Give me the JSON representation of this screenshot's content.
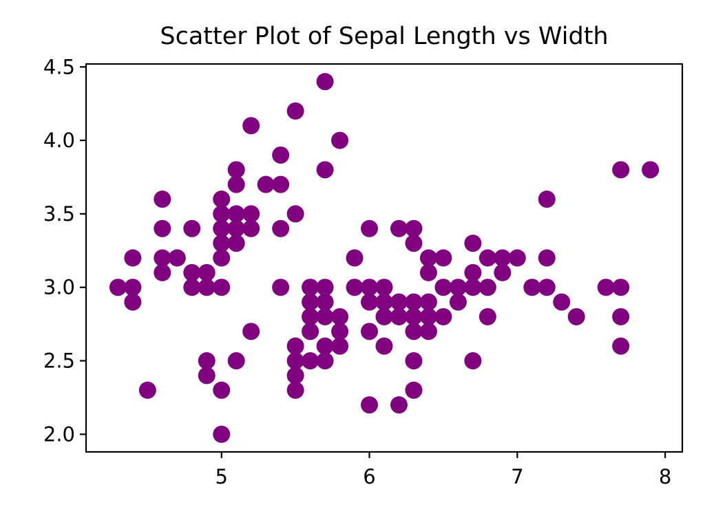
{
  "chart_data": {
    "type": "scatter",
    "title": "Scatter Plot of Sepal Length vs Width",
    "xlabel": "",
    "ylabel": "",
    "xlim": [
      4.084,
      8.116
    ],
    "ylim": [
      1.88,
      4.52
    ],
    "xticks": [
      5,
      6,
      7,
      8
    ],
    "xtick_labels": [
      "5",
      "6",
      "7",
      "8"
    ],
    "yticks": [
      2.0,
      2.5,
      3.0,
      3.5,
      4.0,
      4.5
    ],
    "ytick_labels": [
      "2.0",
      "2.5",
      "3.0",
      "3.5",
      "4.0",
      "4.5"
    ],
    "grid": false,
    "legend": "none",
    "marker_color": "#800080",
    "points": [
      [
        4.3,
        3.0
      ],
      [
        4.4,
        3.2
      ],
      [
        4.4,
        3.0
      ],
      [
        4.4,
        2.9
      ],
      [
        4.5,
        2.3
      ],
      [
        4.6,
        3.6
      ],
      [
        4.6,
        3.4
      ],
      [
        4.6,
        3.2
      ],
      [
        4.6,
        3.1
      ],
      [
        4.7,
        3.2
      ],
      [
        4.8,
        3.4
      ],
      [
        4.8,
        3.1
      ],
      [
        4.8,
        3.0
      ],
      [
        4.9,
        3.1
      ],
      [
        4.9,
        3.0
      ],
      [
        4.9,
        2.5
      ],
      [
        4.9,
        2.4
      ],
      [
        5.0,
        3.6
      ],
      [
        5.0,
        3.5
      ],
      [
        5.0,
        3.4
      ],
      [
        5.0,
        3.3
      ],
      [
        5.0,
        3.2
      ],
      [
        5.0,
        3.0
      ],
      [
        5.0,
        2.3
      ],
      [
        5.0,
        2.0
      ],
      [
        5.1,
        3.8
      ],
      [
        5.1,
        3.7
      ],
      [
        5.1,
        3.5
      ],
      [
        5.1,
        3.4
      ],
      [
        5.1,
        3.3
      ],
      [
        5.1,
        2.5
      ],
      [
        5.2,
        4.1
      ],
      [
        5.2,
        3.5
      ],
      [
        5.2,
        3.4
      ],
      [
        5.2,
        2.7
      ],
      [
        5.3,
        3.7
      ],
      [
        5.4,
        3.9
      ],
      [
        5.4,
        3.7
      ],
      [
        5.4,
        3.4
      ],
      [
        5.4,
        3.0
      ],
      [
        5.5,
        4.2
      ],
      [
        5.5,
        3.5
      ],
      [
        5.5,
        2.6
      ],
      [
        5.5,
        2.5
      ],
      [
        5.5,
        2.4
      ],
      [
        5.5,
        2.3
      ],
      [
        5.6,
        3.0
      ],
      [
        5.6,
        2.9
      ],
      [
        5.6,
        2.8
      ],
      [
        5.6,
        2.7
      ],
      [
        5.6,
        2.5
      ],
      [
        5.7,
        4.4
      ],
      [
        5.7,
        3.8
      ],
      [
        5.7,
        3.0
      ],
      [
        5.7,
        2.9
      ],
      [
        5.7,
        2.8
      ],
      [
        5.7,
        2.6
      ],
      [
        5.7,
        2.5
      ],
      [
        5.8,
        4.0
      ],
      [
        5.8,
        2.8
      ],
      [
        5.8,
        2.7
      ],
      [
        5.8,
        2.6
      ],
      [
        5.9,
        3.2
      ],
      [
        5.9,
        3.0
      ],
      [
        6.0,
        3.4
      ],
      [
        6.0,
        3.0
      ],
      [
        6.0,
        2.9
      ],
      [
        6.0,
        2.7
      ],
      [
        6.0,
        2.2
      ],
      [
        6.1,
        3.0
      ],
      [
        6.1,
        2.9
      ],
      [
        6.1,
        2.8
      ],
      [
        6.1,
        2.6
      ],
      [
        6.2,
        3.4
      ],
      [
        6.2,
        2.9
      ],
      [
        6.2,
        2.8
      ],
      [
        6.2,
        2.2
      ],
      [
        6.3,
        3.4
      ],
      [
        6.3,
        3.3
      ],
      [
        6.3,
        2.9
      ],
      [
        6.3,
        2.8
      ],
      [
        6.3,
        2.7
      ],
      [
        6.3,
        2.5
      ],
      [
        6.3,
        2.3
      ],
      [
        6.4,
        3.2
      ],
      [
        6.4,
        3.1
      ],
      [
        6.4,
        2.9
      ],
      [
        6.4,
        2.8
      ],
      [
        6.4,
        2.7
      ],
      [
        6.5,
        3.2
      ],
      [
        6.5,
        3.0
      ],
      [
        6.5,
        2.8
      ],
      [
        6.6,
        3.0
      ],
      [
        6.6,
        2.9
      ],
      [
        6.7,
        3.3
      ],
      [
        6.7,
        3.1
      ],
      [
        6.7,
        3.0
      ],
      [
        6.7,
        2.5
      ],
      [
        6.8,
        3.2
      ],
      [
        6.8,
        3.0
      ],
      [
        6.8,
        2.8
      ],
      [
        6.9,
        3.2
      ],
      [
        6.9,
        3.1
      ],
      [
        7.0,
        3.2
      ],
      [
        7.1,
        3.0
      ],
      [
        7.2,
        3.6
      ],
      [
        7.2,
        3.2
      ],
      [
        7.2,
        3.0
      ],
      [
        7.3,
        2.9
      ],
      [
        7.4,
        2.8
      ],
      [
        7.6,
        3.0
      ],
      [
        7.7,
        3.8
      ],
      [
        7.7,
        3.0
      ],
      [
        7.7,
        2.8
      ],
      [
        7.7,
        2.6
      ],
      [
        7.9,
        3.8
      ]
    ]
  }
}
